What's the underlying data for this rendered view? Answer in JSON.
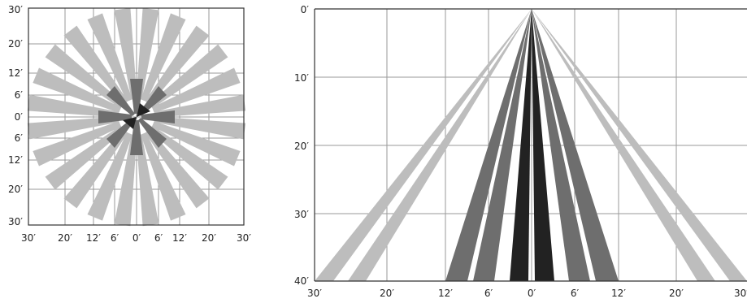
{
  "top_view": {
    "y_labels": [
      "30′",
      "20′",
      "12′",
      "6′",
      "0′",
      "6′",
      "12′",
      "20′",
      "30′"
    ],
    "x_labels": [
      "30′",
      "20′",
      "12′",
      "6′",
      "0′",
      "6′",
      "12′",
      "20′",
      "30′"
    ]
  },
  "side_view": {
    "y_labels": [
      "0′",
      "10′",
      "20′",
      "30′",
      "40′"
    ],
    "x_labels": [
      "30′",
      "20′",
      "12′",
      "6′",
      "0′",
      "6′",
      "12′",
      "20′",
      "30′"
    ]
  },
  "colors": {
    "long_range_zone": "#bdbdbd",
    "mid_range_zone": "#6e6e6e",
    "near_zone": "#222222",
    "grid": "#9a9a9a",
    "frame": "#333333"
  }
}
